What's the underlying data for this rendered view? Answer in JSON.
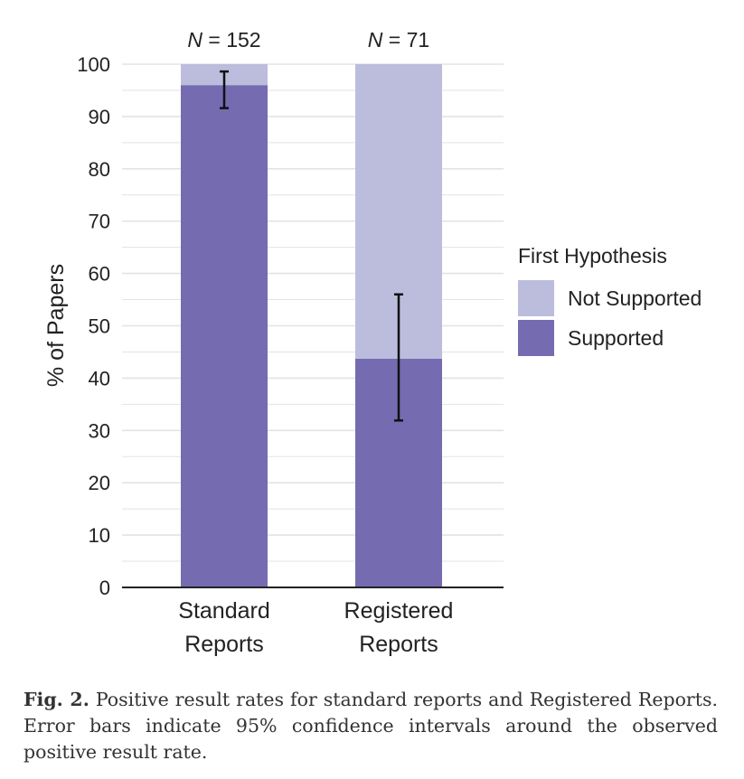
{
  "chart_data": {
    "type": "bar",
    "stacked": true,
    "categories": [
      {
        "line1": "Standard",
        "line2": "Reports"
      },
      {
        "line1": "Registered",
        "line2": "Reports"
      }
    ],
    "sample_sizes": [
      "N = 152",
      "N = 71"
    ],
    "sample_size_parts": [
      {
        "symbol": "N",
        "value": "= 152"
      },
      {
        "symbol": "N",
        "value": "= 71"
      }
    ],
    "series": [
      {
        "name": "Supported",
        "values": [
          96,
          43.7
        ],
        "color": "#756bb1"
      },
      {
        "name": "Not Supported",
        "values": [
          4,
          56.3
        ],
        "color": "#bcbddc"
      }
    ],
    "error_bars": [
      {
        "center": 96,
        "low": 91.6,
        "high": 98.6
      },
      {
        "center": 43.7,
        "low": 31.9,
        "high": 56.0
      }
    ],
    "ylabel": "% of Papers",
    "ylim": [
      0,
      100
    ],
    "yticks": [
      0,
      10,
      20,
      30,
      40,
      50,
      60,
      70,
      80,
      90,
      100
    ],
    "grid": true,
    "legend": {
      "title": "First Hypothesis",
      "position": "right",
      "entries": [
        "Not Supported",
        "Supported"
      ]
    }
  },
  "caption": {
    "label": "Fig. 2.",
    "text": "Positive result rates for standard reports and Registered Reports. Error bars indicate 95% confidence intervals around the observed positive result rate."
  }
}
